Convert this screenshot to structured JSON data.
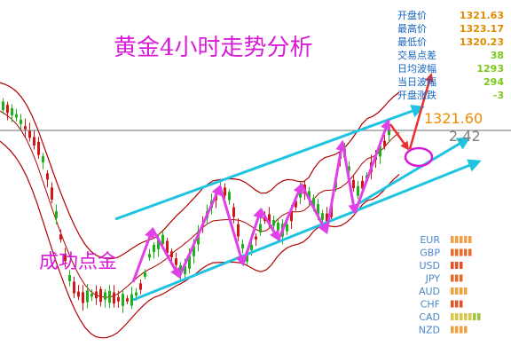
{
  "chart": {
    "title": "黄金4小时走势分析",
    "annotation": "成功点金",
    "current_price": "1321.60",
    "side_value": "2.42"
  },
  "stats": [
    {
      "label": "开盘价",
      "value": "1321.63"
    },
    {
      "label": "最高价",
      "value": "1323.17"
    },
    {
      "label": "最低价",
      "value": "1320.23"
    },
    {
      "label": "交易点差",
      "value": "38"
    },
    {
      "label": "日均波幅",
      "value": "1293"
    },
    {
      "label": "当日波幅",
      "value": "294"
    },
    {
      "label": "开盘涨跌",
      "value": "-3"
    }
  ],
  "currencies": [
    {
      "code": "EUR",
      "strength": 5
    },
    {
      "code": "GBP",
      "strength": 5
    },
    {
      "code": "USD",
      "strength": 3
    },
    {
      "code": "JPY",
      "strength": 3
    },
    {
      "code": "AUD",
      "strength": 4
    },
    {
      "code": "CHF",
      "strength": 3
    },
    {
      "code": "CAD",
      "strength": 7
    },
    {
      "code": "NZD",
      "strength": 4
    }
  ],
  "chart_data": {
    "type": "line",
    "title": "黄金4小时走势分析",
    "current_price": 1321.6,
    "ohlc_open": 1321.63,
    "ohlc_high": 1323.17,
    "ohlc_low": 1320.23
  },
  "colors": {
    "up_candle": "#1db21d",
    "down_candle": "#d01818",
    "bollinger": "#b00000",
    "channel": "#1fc4e0",
    "zigzag": "#e040e8",
    "forecast": "#e83030",
    "circle": "#d81bd8"
  }
}
